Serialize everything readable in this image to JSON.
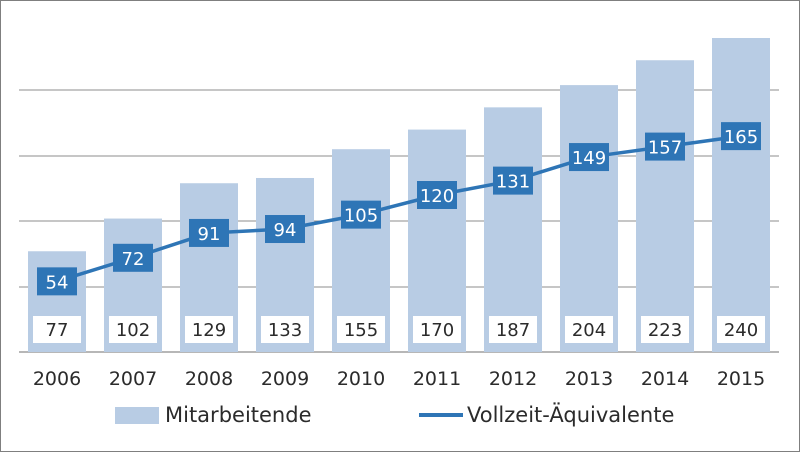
{
  "chart_data": {
    "type": "bar+line",
    "categories": [
      "2006",
      "2007",
      "2008",
      "2009",
      "2010",
      "2011",
      "2012",
      "2013",
      "2014",
      "2015"
    ],
    "series": [
      {
        "name": "Mitarbeitende",
        "type": "bar",
        "values": [
          77,
          102,
          129,
          133,
          155,
          170,
          187,
          204,
          223,
          240
        ]
      },
      {
        "name": "Vollzeit-Äquivalente",
        "type": "line",
        "values": [
          54,
          72,
          91,
          94,
          105,
          120,
          131,
          149,
          157,
          165
        ]
      }
    ],
    "ylim": [
      0,
      240
    ],
    "grid": true,
    "legend_position": "bottom",
    "colors": {
      "bar": "#b8cce4",
      "line": "#2e75b6",
      "grid": "#8c8c8c",
      "label_box": "#ffffff"
    }
  },
  "legend": {
    "bar_label": "Mitarbeitende",
    "line_label": "Vollzeit-Äquivalente"
  }
}
